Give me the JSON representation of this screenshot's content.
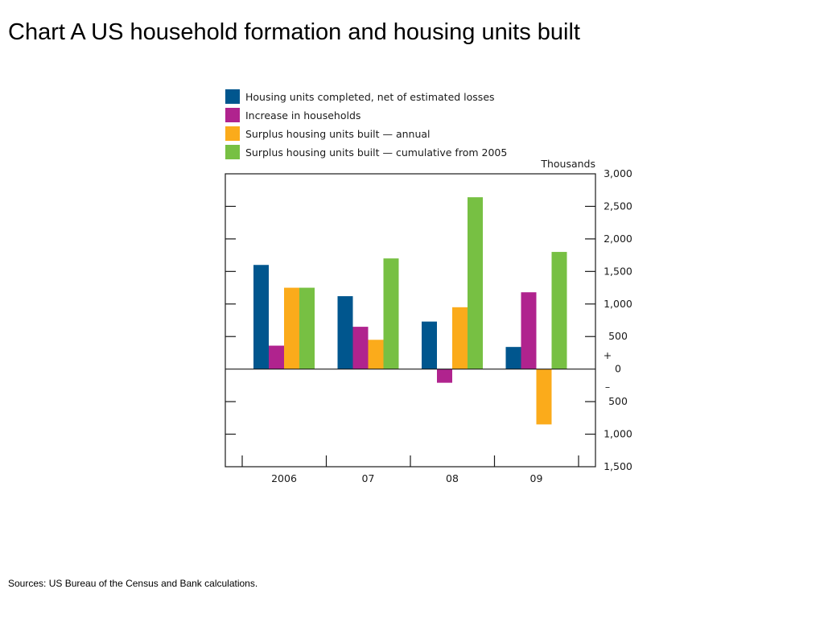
{
  "page": {
    "title": "Chart A  US household formation and housing units built",
    "sources": "Sources:  US Bureau of the Census and Bank calculations."
  },
  "chart_data": {
    "type": "bar",
    "unit_label": "Thousands",
    "categories": [
      "2006",
      "07",
      "08",
      "09"
    ],
    "series": [
      {
        "name": "Housing units completed, net of estimated losses",
        "color": "#00568e",
        "values": [
          1600,
          1120,
          730,
          340
        ]
      },
      {
        "name": "Increase in households",
        "color": "#b0238e",
        "values": [
          360,
          650,
          -210,
          1180
        ]
      },
      {
        "name": "Surplus housing units built — annual",
        "color": "#fbab1b",
        "values": [
          1250,
          450,
          950,
          -850
        ]
      },
      {
        "name": "Surplus housing units built — cumulative from 2005",
        "color": "#77c043",
        "values": [
          1250,
          1700,
          2640,
          1800
        ]
      }
    ],
    "ylim": [
      -1500,
      3000
    ],
    "yticks": [
      3000,
      2500,
      2000,
      1500,
      1000,
      500,
      0,
      -500,
      -1000,
      -1500
    ],
    "ytick_labels": [
      "3,000",
      "2,500",
      "2,000",
      "1,500",
      "1,000",
      "500",
      "0",
      "500",
      "1,000",
      "1,500"
    ],
    "sign_labels": {
      "plus": "+",
      "minus": "–"
    },
    "legend_position": "top-left",
    "grid": false
  }
}
